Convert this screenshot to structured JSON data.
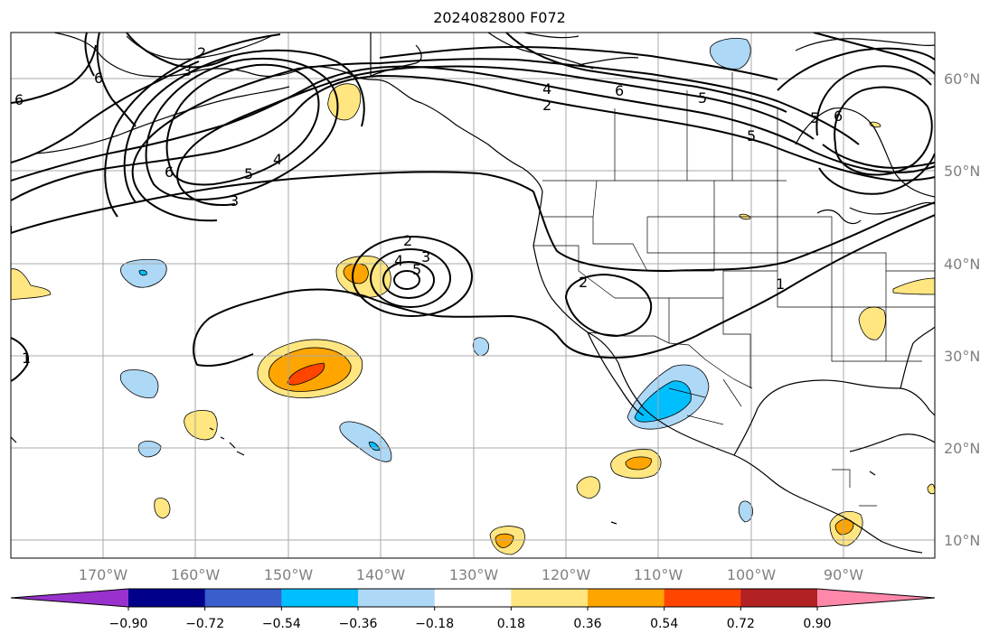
{
  "title": "2024082800 F072",
  "lon_ticks": [
    "170°W",
    "160°W",
    "150°W",
    "140°W",
    "130°W",
    "120°W",
    "110°W",
    "100°W",
    "90°W"
  ],
  "lat_ticks": [
    "60°N",
    "50°N",
    "40°N",
    "30°N",
    "20°N",
    "10°N"
  ],
  "contour_labels": [
    "2",
    "3",
    "6",
    "6",
    "3",
    "5",
    "4",
    "6",
    "5",
    "4",
    "2",
    "6",
    "5",
    "2",
    "3",
    "4",
    "5",
    "2",
    "1",
    "1",
    "5",
    "6"
  ],
  "colorbar": {
    "ticks": [
      "−0.90",
      "−0.72",
      "−0.54",
      "−0.36",
      "−0.18",
      "0.18",
      "0.36",
      "0.54",
      "0.72",
      "0.90"
    ],
    "colors": [
      "#9932cc",
      "#00008b",
      "#3a5fcd",
      "#00bfff",
      "#add8f6",
      "#ffffff",
      "#ffe680",
      "#ffa500",
      "#ff4500",
      "#b22222",
      "#ff88aa"
    ]
  },
  "anomaly_colors": {
    "light_yellow": "#ffe680",
    "orange": "#ffa500",
    "red_orange": "#ff4500",
    "light_blue": "#add8f6",
    "blue": "#00bfff"
  }
}
